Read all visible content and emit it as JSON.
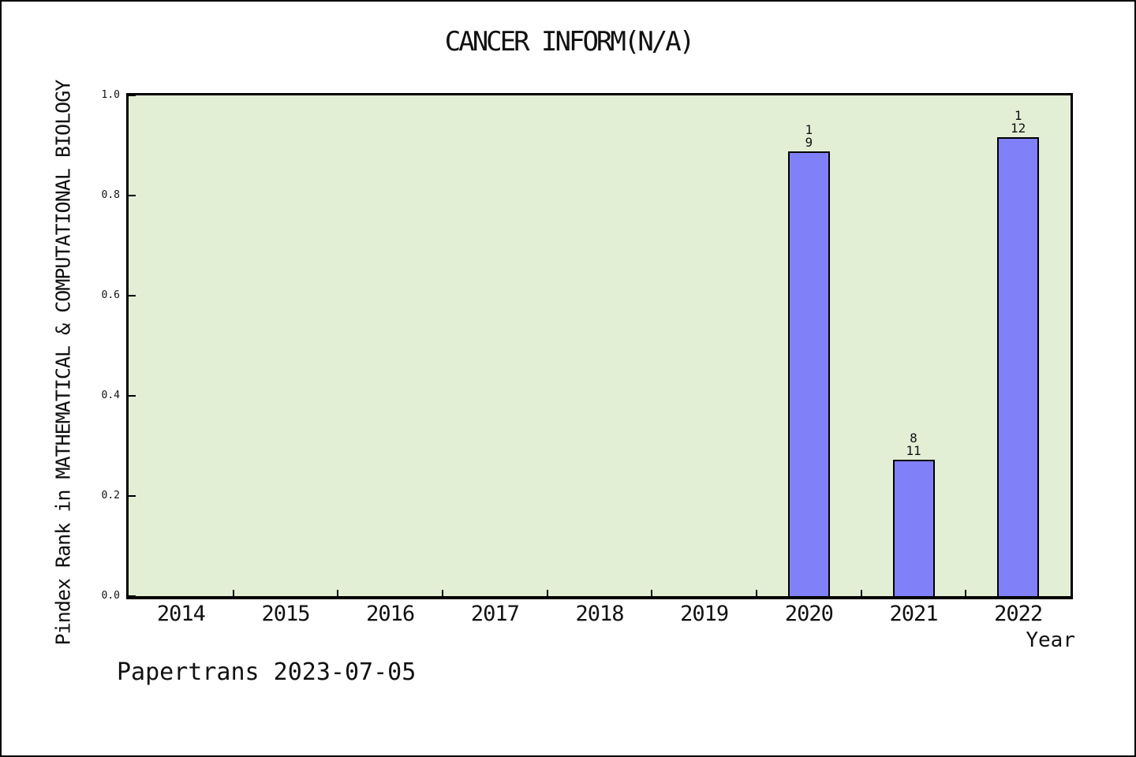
{
  "chart_data": {
    "type": "bar",
    "title": "CANCER INFORM(N/A)",
    "xlabel": "Year",
    "ylabel": "Pindex Rank in MATHEMATICAL & COMPUTATIONAL BIOLOGY",
    "footer": "Papertrans 2023-07-05",
    "categories": [
      "2014",
      "2015",
      "2016",
      "2017",
      "2018",
      "2019",
      "2020",
      "2021",
      "2022"
    ],
    "values": [
      null,
      null,
      null,
      null,
      null,
      null,
      0.889,
      0.273,
      0.917
    ],
    "bar_labels": [
      null,
      null,
      null,
      null,
      null,
      null,
      [
        "1",
        "9"
      ],
      [
        "8",
        "11"
      ],
      [
        "1",
        "12"
      ]
    ],
    "yticks": [
      0.0,
      0.2,
      0.4,
      0.6,
      0.8,
      1.0
    ],
    "ytick_labels": [
      "0.0",
      "0.2",
      "0.4",
      "0.6",
      "0.8",
      "1.0"
    ],
    "ylim": [
      0,
      1
    ],
    "grid": false,
    "legend_position": "none",
    "colors": {
      "bar_fill": "#8080F8",
      "bar_edge": "#000000",
      "plot_bg": "#E2EFD5",
      "frame": "#000000",
      "text": "#111111"
    }
  }
}
